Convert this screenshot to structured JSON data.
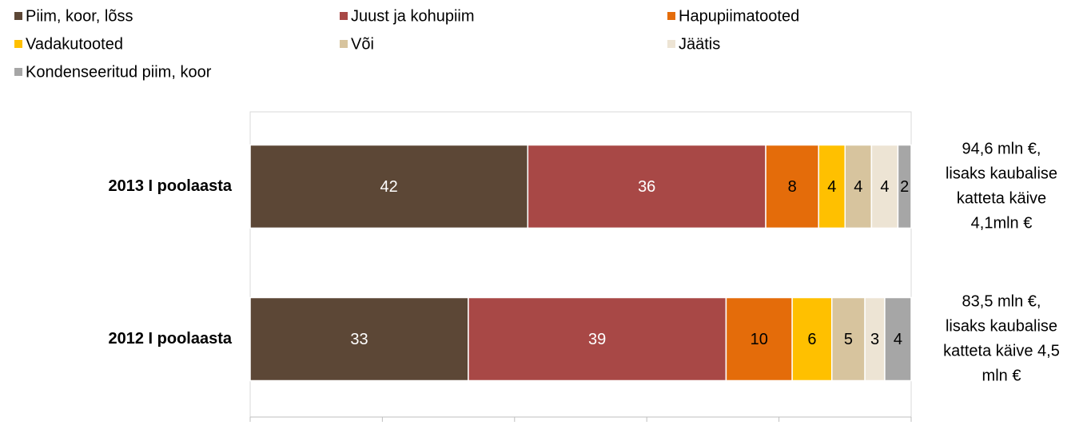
{
  "chart_data": {
    "type": "stacked-bar-horizontal",
    "categories": [
      "2013 I poolaasta",
      "2012 I poolaasta"
    ],
    "series": [
      {
        "name": "Piim, koor, lõss",
        "color": "#5c4736",
        "values": [
          42,
          33
        ]
      },
      {
        "name": "Juust ja kohupiim",
        "color": "#a84846",
        "values": [
          36,
          39
        ]
      },
      {
        "name": "Hapupiimatooted",
        "color": "#e46c0a",
        "values": [
          8,
          10
        ]
      },
      {
        "name": "Vadakutooted",
        "color": "#ffc000",
        "values": [
          4,
          6
        ]
      },
      {
        "name": "Või",
        "color": "#d7c49e",
        "values": [
          4,
          5
        ]
      },
      {
        "name": "Jäätis",
        "color": "#ede4d4",
        "values": [
          4,
          3
        ]
      },
      {
        "name": "Kondenseeritud piim, koor",
        "color": "#a6a6a6",
        "values": [
          2,
          4
        ]
      }
    ],
    "annotations": [
      [
        "94,6 mln €,",
        "lisaks kaubalise",
        "katteta käive",
        "4,1mln €"
      ],
      [
        "83,5 mln €,",
        "lisaks kaubalise",
        "katteta käive 4,5",
        "mln €"
      ]
    ],
    "xlim": [
      0,
      100
    ],
    "xticks": [
      0,
      20,
      40,
      60,
      80,
      100
    ],
    "legend": "top"
  }
}
